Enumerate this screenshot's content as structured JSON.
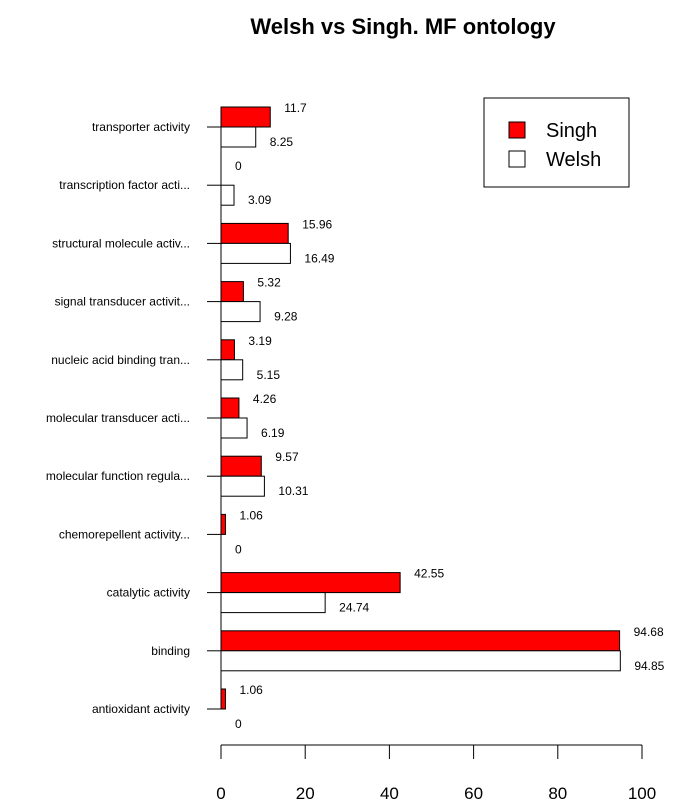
{
  "chart_data": {
    "type": "bar",
    "orientation": "horizontal",
    "title": "Welsh vs Singh. MF ontology",
    "xlim": [
      0,
      100
    ],
    "xticks": [
      0,
      20,
      40,
      60,
      80,
      100
    ],
    "legend_position": "top-right",
    "categories": [
      "transporter activity",
      "transcription factor acti...",
      "structural molecule activ...",
      "signal transducer activit...",
      "nucleic acid binding tran...",
      "molecular transducer acti...",
      "molecular function regula...",
      "chemorepellent activity...",
      "catalytic activity",
      "binding",
      "antioxidant activity"
    ],
    "series": [
      {
        "name": "Singh",
        "color": "#ff0000",
        "values": [
          11.7,
          0,
          15.96,
          5.32,
          3.19,
          4.26,
          9.57,
          1.06,
          42.55,
          94.68,
          1.06
        ],
        "value_labels": [
          "11.7",
          "0",
          "15.96",
          "5.32",
          "3.19",
          "4.26",
          "9.57",
          "1.06",
          "42.55",
          "94.68",
          "1.06"
        ]
      },
      {
        "name": "Welsh",
        "color": "#ffffff",
        "values": [
          8.25,
          3.09,
          16.49,
          9.28,
          5.15,
          6.19,
          10.31,
          0,
          24.74,
          94.85,
          0
        ],
        "value_labels": [
          "8.25",
          "3.09",
          "16.49",
          "9.28",
          "5.15",
          "6.19",
          "10.31",
          "0",
          "24.74",
          "94.85",
          "0"
        ]
      }
    ]
  }
}
